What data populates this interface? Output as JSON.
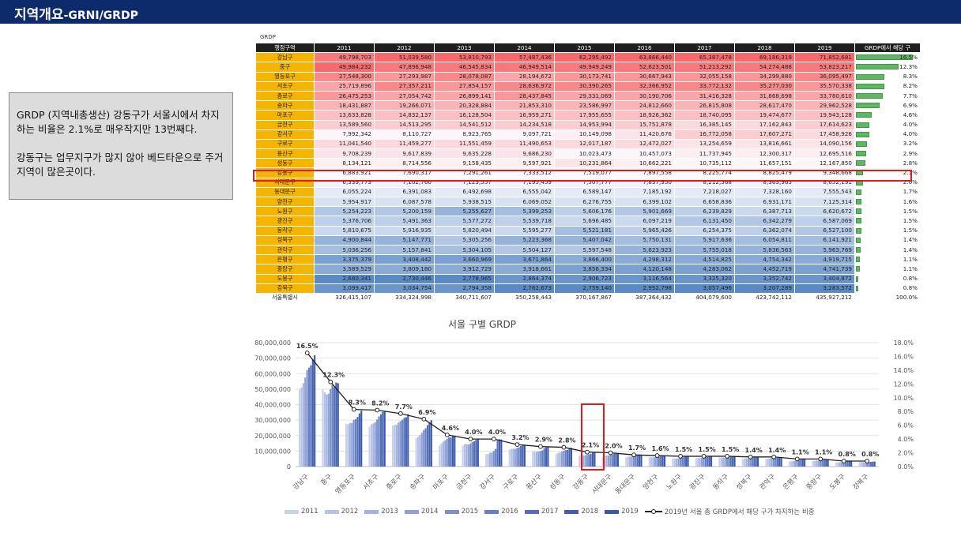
{
  "header": {
    "title_main": "지역개요",
    "title_sub": "-GRNI/GRDP"
  },
  "note": {
    "para1": "GRDP (지역내총생산) 강동구가 서울시에서 차지하는 비율은 2.1%로 매우작지만 13번째다.",
    "para2": "강동구는 업무지구가 많지 않아 베드타운으로 주거지역이 많은곳이다."
  },
  "table": {
    "caption": "GRDP",
    "columns": [
      "행정구역",
      "2011",
      "2012",
      "2013",
      "2014",
      "2015",
      "2016",
      "2017",
      "2018",
      "2019",
      "GRDP에서 해당 구"
    ],
    "rows": [
      {
        "name": "강남구",
        "values": [
          "49,798,703",
          "51,039,580",
          "53,810,793",
          "57,487,436",
          "62,295,492",
          "63,866,440",
          "65,387,478",
          "69,186,319",
          "71,852,681"
        ],
        "share": "16.5%"
      },
      {
        "name": "중구",
        "values": [
          "49,984,232",
          "47,896,948",
          "46,545,834",
          "46,949,514",
          "49,949,249",
          "52,623,501",
          "51,213,292",
          "54,274,488",
          "53,823,217"
        ],
        "share": "12.3%"
      },
      {
        "name": "영등포구",
        "values": [
          "27,548,300",
          "27,293,987",
          "28,078,087",
          "28,194,672",
          "30,173,741",
          "30,667,943",
          "32,055,158",
          "34,299,880",
          "36,095,497"
        ],
        "share": "8.3%"
      },
      {
        "name": "서초구",
        "values": [
          "25,719,896",
          "27,357,211",
          "27,854,157",
          "28,636,972",
          "30,390,265",
          "32,366,952",
          "33,772,132",
          "35,277,030",
          "35,570,338"
        ],
        "share": "8.2%"
      },
      {
        "name": "종로구",
        "values": [
          "26,475,253",
          "27,054,742",
          "26,899,141",
          "28,437,845",
          "29,331,069",
          "30,190,706",
          "31,416,328",
          "31,868,698",
          "33,780,610"
        ],
        "share": "7.7%"
      },
      {
        "name": "송파구",
        "values": [
          "18,431,887",
          "19,266,071",
          "20,328,884",
          "21,853,310",
          "23,586,997",
          "24,812,660",
          "26,815,808",
          "28,617,470",
          "29,962,528"
        ],
        "share": "6.9%"
      },
      {
        "name": "마포구",
        "values": [
          "13,633,828",
          "14,832,137",
          "16,128,504",
          "16,959,271",
          "17,955,655",
          "18,926,362",
          "18,740,095",
          "19,474,677",
          "19,943,128"
        ],
        "share": "4.6%"
      },
      {
        "name": "금천구",
        "values": [
          "13,589,560",
          "14,513,295",
          "14,541,512",
          "14,234,518",
          "14,953,994",
          "15,751,878",
          "16,385,145",
          "17,162,843",
          "17,614,623"
        ],
        "share": "4.0%"
      },
      {
        "name": "강서구",
        "values": [
          "7,992,342",
          "8,110,727",
          "8,923,765",
          "9,097,721",
          "10,149,098",
          "11,420,676",
          "16,772,058",
          "17,607,271",
          "17,458,926"
        ],
        "share": "4.0%"
      },
      {
        "name": "구로구",
        "values": [
          "11,041,540",
          "11,459,277",
          "11,551,459",
          "11,490,653",
          "12,017,187",
          "12,472,027",
          "13,254,659",
          "13,816,661",
          "14,090,156"
        ],
        "share": "3.2%"
      },
      {
        "name": "용산구",
        "values": [
          "9,708,239",
          "9,617,839",
          "9,635,228",
          "9,686,230",
          "10,023,473",
          "10,457,073",
          "11,737,945",
          "12,300,317",
          "12,695,516"
        ],
        "share": "2.9%"
      },
      {
        "name": "성동구",
        "values": [
          "8,134,121",
          "8,714,556",
          "9,158,435",
          "9,597,921",
          "10,231,864",
          "10,662,221",
          "10,735,112",
          "11,657,151",
          "12,167,850"
        ],
        "share": "2.8%"
      },
      {
        "name": "강동구",
        "values": [
          "6,883,921",
          "7,690,317",
          "7,291,261",
          "7,333,512",
          "7,519,077",
          "7,897,558",
          "8,225,774",
          "8,825,479",
          "9,348,668"
        ],
        "share": "2.1%"
      },
      {
        "name": "서대문구",
        "values": [
          "6,339,773",
          "7,102,760",
          "7,123,557",
          "7,195,459",
          "7,507,777",
          "7,837,950",
          "8,212,568",
          "8,363,965",
          "8,652,191"
        ],
        "share": "2.0%"
      },
      {
        "name": "동대문구",
        "values": [
          "6,055,224",
          "6,391,083",
          "6,492,698",
          "6,555,042",
          "6,589,147",
          "7,185,192",
          "7,218,027",
          "7,328,160",
          "7,555,543"
        ],
        "share": "1.7%"
      },
      {
        "name": "양천구",
        "values": [
          "5,954,917",
          "6,087,578",
          "5,938,515",
          "6,069,052",
          "6,276,755",
          "6,399,102",
          "6,658,836",
          "6,931,171",
          "7,125,314"
        ],
        "share": "1.6%"
      },
      {
        "name": "노원구",
        "values": [
          "5,254,223",
          "5,200,159",
          "5,255,627",
          "5,399,253",
          "5,606,176",
          "5,901,669",
          "6,239,829",
          "6,387,713",
          "6,620,672"
        ],
        "share": "1.5%"
      },
      {
        "name": "광진구",
        "values": [
          "5,376,706",
          "5,491,363",
          "5,577,272",
          "5,539,718",
          "5,696,485",
          "6,097,219",
          "6,131,450",
          "6,342,279",
          "6,587,069"
        ],
        "share": "1.5%"
      },
      {
        "name": "동작구",
        "values": [
          "5,810,675",
          "5,916,935",
          "5,820,494",
          "5,595,277",
          "5,521,181",
          "5,965,426",
          "6,254,375",
          "6,362,074",
          "6,527,100"
        ],
        "share": "1.5%"
      },
      {
        "name": "성북구",
        "values": [
          "4,900,844",
          "5,147,771",
          "5,305,256",
          "5,223,368",
          "5,407,042",
          "5,750,131",
          "5,917,636",
          "6,054,811",
          "6,141,921"
        ],
        "share": "1.4%"
      },
      {
        "name": "관악구",
        "values": [
          "5,036,256",
          "5,157,841",
          "5,304,105",
          "5,504,127",
          "5,597,548",
          "5,623,923",
          "5,755,018",
          "5,836,563",
          "5,963,769"
        ],
        "share": "1.4%"
      },
      {
        "name": "은평구",
        "values": [
          "3,375,379",
          "3,408,442",
          "3,660,969",
          "3,671,864",
          "3,866,400",
          "4,298,312",
          "4,514,825",
          "4,754,342",
          "4,919,715"
        ],
        "share": "1.1%"
      },
      {
        "name": "중랑구",
        "values": [
          "3,589,529",
          "3,809,180",
          "3,912,729",
          "3,918,661",
          "3,856,334",
          "4,120,148",
          "4,283,062",
          "4,452,719",
          "4,741,739"
        ],
        "share": "1.1%"
      },
      {
        "name": "도봉구",
        "values": [
          "2,680,341",
          "2,730,446",
          "2,778,965",
          "2,864,374",
          "2,906,723",
          "3,116,564",
          "3,325,320",
          "3,352,742",
          "3,404,872"
        ],
        "share": "0.8%"
      },
      {
        "name": "강북구",
        "values": [
          "3,099,417",
          "3,034,754",
          "2,794,358",
          "2,762,673",
          "2,759,140",
          "2,952,798",
          "3,057,496",
          "3,207,289",
          "3,283,572"
        ],
        "share": "0.8%"
      },
      {
        "name": "서울특별시",
        "values": [
          "326,415,107",
          "334,324,998",
          "340,711,607",
          "350,258,443",
          "370,167,867",
          "387,364,432",
          "404,079,600",
          "423,742,112",
          "435,927,212"
        ],
        "share": "100.0%",
        "total": true
      }
    ]
  },
  "colors": {
    "header_bar": "#0d2b6b",
    "district_cell": "#f5b400",
    "highlight": "#e11b1b",
    "share_bar": "#62b565",
    "high_value": "#f8696b",
    "mid_value": "#fcfcff",
    "low_value": "#5a8ac6",
    "series_colors": [
      "#c9d1ea",
      "#b7c3e6",
      "#a3b3df",
      "#8ea2d6",
      "#7a91cd",
      "#6680c4",
      "#536fba",
      "#425fae",
      "#3a58a8"
    ],
    "share_line": "#222222"
  },
  "chart_data": {
    "type": "bar",
    "title": "서울 구별 GRDP",
    "categories": [
      "강남구",
      "중구",
      "영등포구",
      "서초구",
      "종로구",
      "송파구",
      "마포구",
      "금천구",
      "강서구",
      "구로구",
      "용산구",
      "성동구",
      "강동구",
      "서대문구",
      "동대문구",
      "양천구",
      "노원구",
      "광진구",
      "동작구",
      "성북구",
      "관악구",
      "은평구",
      "중랑구",
      "도봉구",
      "강북구"
    ],
    "series": [
      {
        "name": "2011",
        "values": [
          49798703,
          49984232,
          27548300,
          25719896,
          26475253,
          18431887,
          13633828,
          13589560,
          7992342,
          11041540,
          9708239,
          8134121,
          6883921,
          6339773,
          6055224,
          5954917,
          5254223,
          5376706,
          5810675,
          4900844,
          5036256,
          3375379,
          3589529,
          2680341,
          3099417
        ]
      },
      {
        "name": "2012",
        "values": [
          51039580,
          47896948,
          27293987,
          27357211,
          27054742,
          19266071,
          14832137,
          14513295,
          8110727,
          11459277,
          9617839,
          8714556,
          7690317,
          7102760,
          6391083,
          6087578,
          5200159,
          5491363,
          5916935,
          5147771,
          5157841,
          3408442,
          3809180,
          2730446,
          3034754
        ]
      },
      {
        "name": "2013",
        "values": [
          53810793,
          46545834,
          28078087,
          27854157,
          26899141,
          20328884,
          16128504,
          14541512,
          8923765,
          11551459,
          9635228,
          9158435,
          7291261,
          7123557,
          6492698,
          5938515,
          5255627,
          5577272,
          5820494,
          5305256,
          5304105,
          3660969,
          3912729,
          2778965,
          2794358
        ]
      },
      {
        "name": "2014",
        "values": [
          57487436,
          46949514,
          28194672,
          28636972,
          28437845,
          21853310,
          16959271,
          14234518,
          9097721,
          11490653,
          9686230,
          9597921,
          7333512,
          7195459,
          6555042,
          6069052,
          5399253,
          5539718,
          5595277,
          5223368,
          5504127,
          3671864,
          3918661,
          2864374,
          2762673
        ]
      },
      {
        "name": "2015",
        "values": [
          62295492,
          49949249,
          30173741,
          30390265,
          29331069,
          23586997,
          17955655,
          14953994,
          10149098,
          12017187,
          10023473,
          10231864,
          7519077,
          7507777,
          6589147,
          6276755,
          5606176,
          5696485,
          5521181,
          5407042,
          5597548,
          3866400,
          3856334,
          2906723,
          2759140
        ]
      },
      {
        "name": "2016",
        "values": [
          63866440,
          52623501,
          30667943,
          32366952,
          30190706,
          24812660,
          18926362,
          15751878,
          11420676,
          12472027,
          10457073,
          10662221,
          7897558,
          7837950,
          7185192,
          6399102,
          5901669,
          6097219,
          5965426,
          5750131,
          5623923,
          4298312,
          4120148,
          3116564,
          2952798
        ]
      },
      {
        "name": "2017",
        "values": [
          65387478,
          51213292,
          32055158,
          33772132,
          31416328,
          26815808,
          18740095,
          16385145,
          16772058,
          13254659,
          11737945,
          10735112,
          8225774,
          8212568,
          7218027,
          6658836,
          6239829,
          6131450,
          6254375,
          5917636,
          5755018,
          4514825,
          4283062,
          3325320,
          3057496
        ]
      },
      {
        "name": "2018",
        "values": [
          69186319,
          54274488,
          34299880,
          35277030,
          31868698,
          28617470,
          19474677,
          17162843,
          17607271,
          13816661,
          12300317,
          11657151,
          8825479,
          8363965,
          7328160,
          6931171,
          6387713,
          6342279,
          6362074,
          6054811,
          5836563,
          4754342,
          4452719,
          3352742,
          3207289
        ]
      },
      {
        "name": "2019",
        "values": [
          71852681,
          53823217,
          36095497,
          35570338,
          33780610,
          29962528,
          19943128,
          17614623,
          17458926,
          14090156,
          12695516,
          12167850,
          9348668,
          8652191,
          7555543,
          7125314,
          6620672,
          6587069,
          6527100,
          6141921,
          5963769,
          4919715,
          4741739,
          3404872,
          3283572
        ]
      }
    ],
    "line_series": {
      "name": "2019년 서울 총 GRDP에서 해당 구가 차지하는 비중",
      "values": [
        16.5,
        12.3,
        8.3,
        8.2,
        7.7,
        6.9,
        4.6,
        4.0,
        4.0,
        3.2,
        2.9,
        2.8,
        2.1,
        2.0,
        1.7,
        1.6,
        1.5,
        1.5,
        1.5,
        1.4,
        1.4,
        1.1,
        1.1,
        0.8,
        0.8
      ],
      "labels": [
        "16.5%",
        "12.3%",
        "8.3%",
        "8.2%",
        "7.7%",
        "6.9%",
        "4.6%",
        "4.0%",
        "4.0%",
        "3.2%",
        "2.9%",
        "2.8%",
        "2.1%",
        "2.0%",
        "1.7%",
        "1.6%",
        "1.5%",
        "1.5%",
        "1.5%",
        "1.4%",
        "1.4%",
        "1.1%",
        "1.1%",
        "0.8%",
        "0.8%"
      ]
    },
    "y_left": {
      "ylim": [
        0,
        80000000
      ],
      "ticks": [
        "0",
        "10,000,000",
        "20,000,000",
        "30,000,000",
        "40,000,000",
        "50,000,000",
        "60,000,000",
        "70,000,000",
        "80,000,000"
      ]
    },
    "y_right": {
      "ylim": [
        0,
        18
      ],
      "ticks": [
        "0.0%",
        "2.0%",
        "4.0%",
        "6.0%",
        "8.0%",
        "10.0%",
        "12.0%",
        "14.0%",
        "16.0%",
        "18.0%"
      ]
    },
    "grid": true,
    "legend_position": "bottom",
    "highlight_category": "강동구"
  }
}
